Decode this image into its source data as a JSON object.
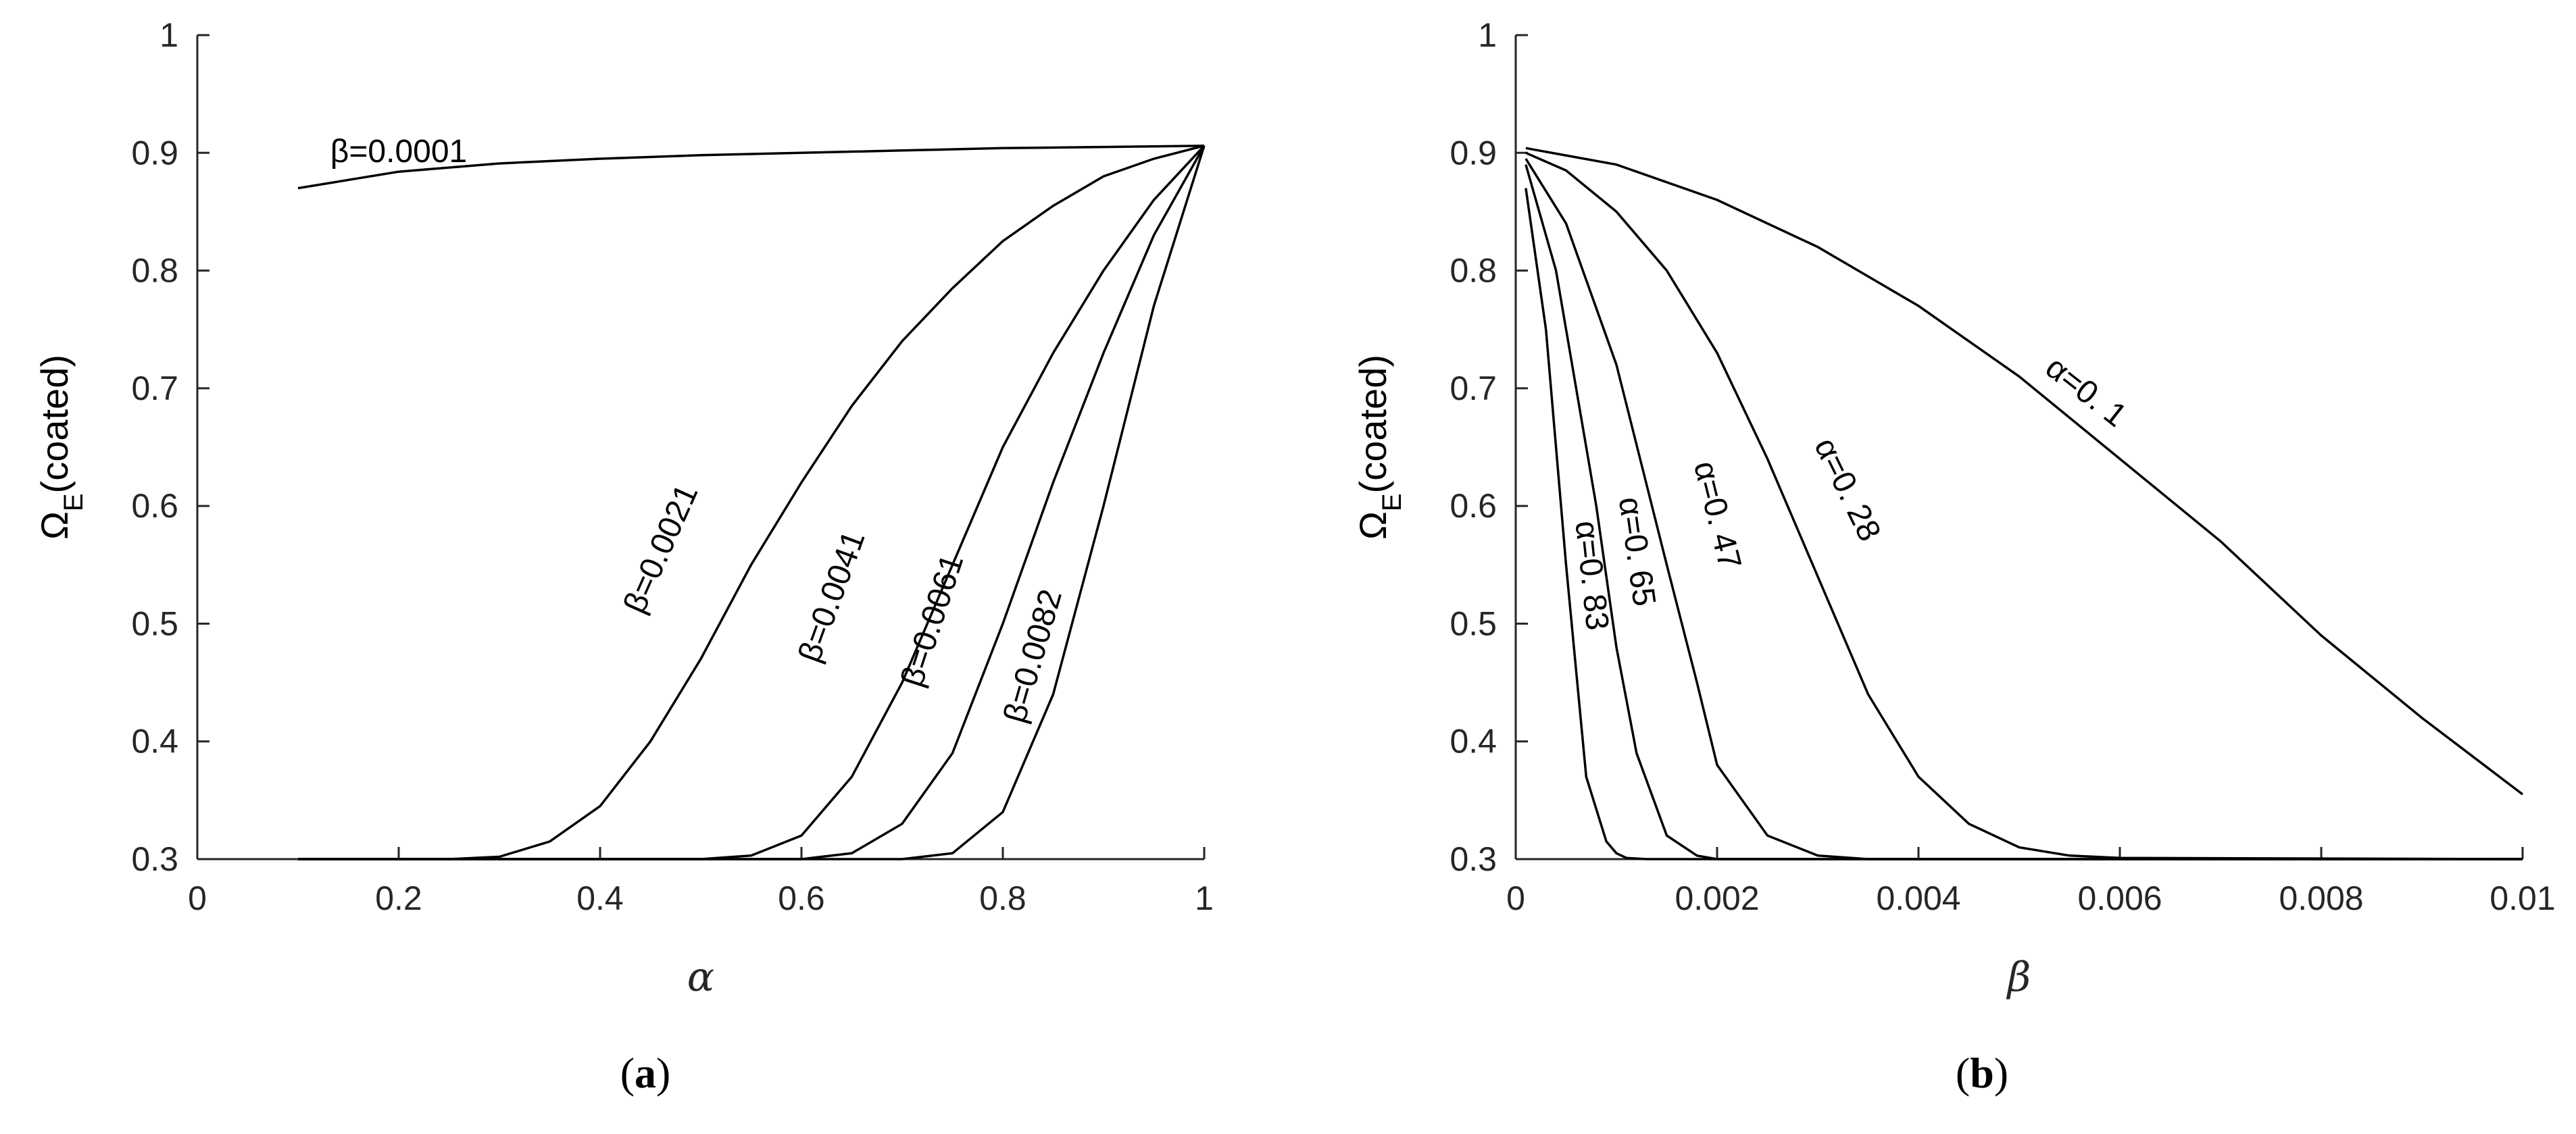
{
  "chart_data": [
    {
      "type": "line",
      "panel_label": "(a)",
      "panel_letter": "a",
      "xlabel": "α",
      "ylabel": "Ω",
      "ylabel_sub": "E",
      "ylabel_suffix": "(coated)",
      "xlim": [
        0,
        1
      ],
      "ylim": [
        0.3,
        1
      ],
      "xticks": [
        "0",
        "0.2",
        "0.4",
        "0.6",
        "0.8",
        "1"
      ],
      "xtick_values": [
        0,
        0.2,
        0.4,
        0.6,
        0.8,
        1
      ],
      "yticks": [
        "0.3",
        "0.4",
        "0.5",
        "0.6",
        "0.7",
        "0.8",
        "0.9",
        "1"
      ],
      "ytick_values": [
        0.3,
        0.4,
        0.5,
        0.6,
        0.7,
        0.8,
        0.9,
        1
      ],
      "grid": false,
      "series": [
        {
          "name": "β=0.0001",
          "x": [
            0.1,
            0.2,
            0.3,
            0.4,
            0.5,
            0.6,
            0.7,
            0.8,
            0.9,
            1.0
          ],
          "y": [
            0.87,
            0.884,
            0.891,
            0.895,
            0.898,
            0.9,
            0.902,
            0.904,
            0.905,
            0.906
          ]
        },
        {
          "name": "β=0.0021",
          "x": [
            0.1,
            0.25,
            0.3,
            0.35,
            0.4,
            0.45,
            0.5,
            0.55,
            0.6,
            0.65,
            0.7,
            0.75,
            0.8,
            0.85,
            0.9,
            0.95,
            1.0
          ],
          "y": [
            0.3,
            0.3,
            0.302,
            0.315,
            0.345,
            0.4,
            0.47,
            0.55,
            0.62,
            0.685,
            0.74,
            0.785,
            0.825,
            0.855,
            0.88,
            0.895,
            0.906
          ]
        },
        {
          "name": "β=0.0041",
          "x": [
            0.1,
            0.5,
            0.55,
            0.6,
            0.65,
            0.7,
            0.75,
            0.8,
            0.85,
            0.9,
            0.95,
            1.0
          ],
          "y": [
            0.3,
            0.3,
            0.303,
            0.32,
            0.37,
            0.45,
            0.55,
            0.65,
            0.73,
            0.8,
            0.86,
            0.906
          ]
        },
        {
          "name": "β=0.0061",
          "x": [
            0.1,
            0.6,
            0.65,
            0.7,
            0.75,
            0.8,
            0.85,
            0.9,
            0.95,
            1.0
          ],
          "y": [
            0.3,
            0.3,
            0.305,
            0.33,
            0.39,
            0.5,
            0.62,
            0.73,
            0.83,
            0.906
          ]
        },
        {
          "name": "β=0.0082",
          "x": [
            0.1,
            0.7,
            0.75,
            0.8,
            0.85,
            0.9,
            0.95,
            1.0
          ],
          "y": [
            0.3,
            0.3,
            0.305,
            0.34,
            0.44,
            0.6,
            0.77,
            0.906
          ]
        }
      ],
      "annotations": [
        {
          "text": "β=0.0001",
          "x": 0.2,
          "y": 0.892,
          "angle": 0
        },
        {
          "text": "β=0.0021",
          "x": 0.47,
          "y": 0.56,
          "angle": -66
        },
        {
          "text": "β=0.0041",
          "x": 0.64,
          "y": 0.52,
          "angle": -70
        },
        {
          "text": "β=0.0061",
          "x": 0.74,
          "y": 0.5,
          "angle": -72
        },
        {
          "text": "β=0.0082",
          "x": 0.84,
          "y": 0.47,
          "angle": -74
        }
      ]
    },
    {
      "type": "line",
      "panel_label": "(b)",
      "panel_letter": "b",
      "xlabel": "β",
      "ylabel": "Ω",
      "ylabel_sub": "E",
      "ylabel_suffix": "(coated)",
      "xlim": [
        0,
        0.01
      ],
      "ylim": [
        0.3,
        1
      ],
      "xticks": [
        "0",
        "0.002",
        "0.004",
        "0.006",
        "0.008",
        "0.01"
      ],
      "xtick_values": [
        0,
        0.002,
        0.004,
        0.006,
        0.008,
        0.01
      ],
      "yticks": [
        "0.3",
        "0.4",
        "0.5",
        "0.6",
        "0.7",
        "0.8",
        "0.9",
        "1"
      ],
      "ytick_values": [
        0.3,
        0.4,
        0.5,
        0.6,
        0.7,
        0.8,
        0.9,
        1
      ],
      "grid": false,
      "series": [
        {
          "name": "α=0. 1",
          "x": [
            0.0001,
            0.001,
            0.002,
            0.003,
            0.004,
            0.005,
            0.006,
            0.007,
            0.008,
            0.009,
            0.01
          ],
          "y": [
            0.904,
            0.89,
            0.86,
            0.82,
            0.77,
            0.71,
            0.64,
            0.57,
            0.49,
            0.42,
            0.355
          ]
        },
        {
          "name": "α=0. 28",
          "x": [
            0.0001,
            0.0005,
            0.001,
            0.0015,
            0.002,
            0.0025,
            0.003,
            0.0035,
            0.004,
            0.0045,
            0.005,
            0.0055,
            0.006,
            0.01
          ],
          "y": [
            0.9,
            0.885,
            0.85,
            0.8,
            0.73,
            0.64,
            0.54,
            0.44,
            0.37,
            0.33,
            0.31,
            0.303,
            0.301,
            0.3
          ]
        },
        {
          "name": "α=0. 47",
          "x": [
            0.0001,
            0.0005,
            0.001,
            0.0015,
            0.0018,
            0.002,
            0.0025,
            0.003,
            0.0035,
            0.01
          ],
          "y": [
            0.895,
            0.84,
            0.72,
            0.55,
            0.45,
            0.38,
            0.32,
            0.303,
            0.3,
            0.3
          ]
        },
        {
          "name": "α=0. 65",
          "x": [
            0.0001,
            0.0004,
            0.0008,
            0.001,
            0.0012,
            0.0015,
            0.0018,
            0.002,
            0.01
          ],
          "y": [
            0.89,
            0.8,
            0.6,
            0.48,
            0.39,
            0.32,
            0.303,
            0.3,
            0.3
          ]
        },
        {
          "name": "α=0. 83",
          "x": [
            0.0001,
            0.0003,
            0.0005,
            0.0007,
            0.0009,
            0.001,
            0.0011,
            0.0013,
            0.01
          ],
          "y": [
            0.87,
            0.75,
            0.55,
            0.37,
            0.315,
            0.305,
            0.301,
            0.3,
            0.3
          ]
        }
      ],
      "annotations": [
        {
          "text": "α=0. 1",
          "x": 0.0056,
          "y": 0.69,
          "angle": 38
        },
        {
          "text": "α=0. 28",
          "x": 0.0032,
          "y": 0.61,
          "angle": 64
        },
        {
          "text": "α=0. 47",
          "x": 0.0019,
          "y": 0.59,
          "angle": 76
        },
        {
          "text": "α=0. 65",
          "x": 0.0011,
          "y": 0.56,
          "angle": 82
        },
        {
          "text": "α=0. 83",
          "x": 0.00065,
          "y": 0.54,
          "angle": 84
        }
      ]
    }
  ]
}
